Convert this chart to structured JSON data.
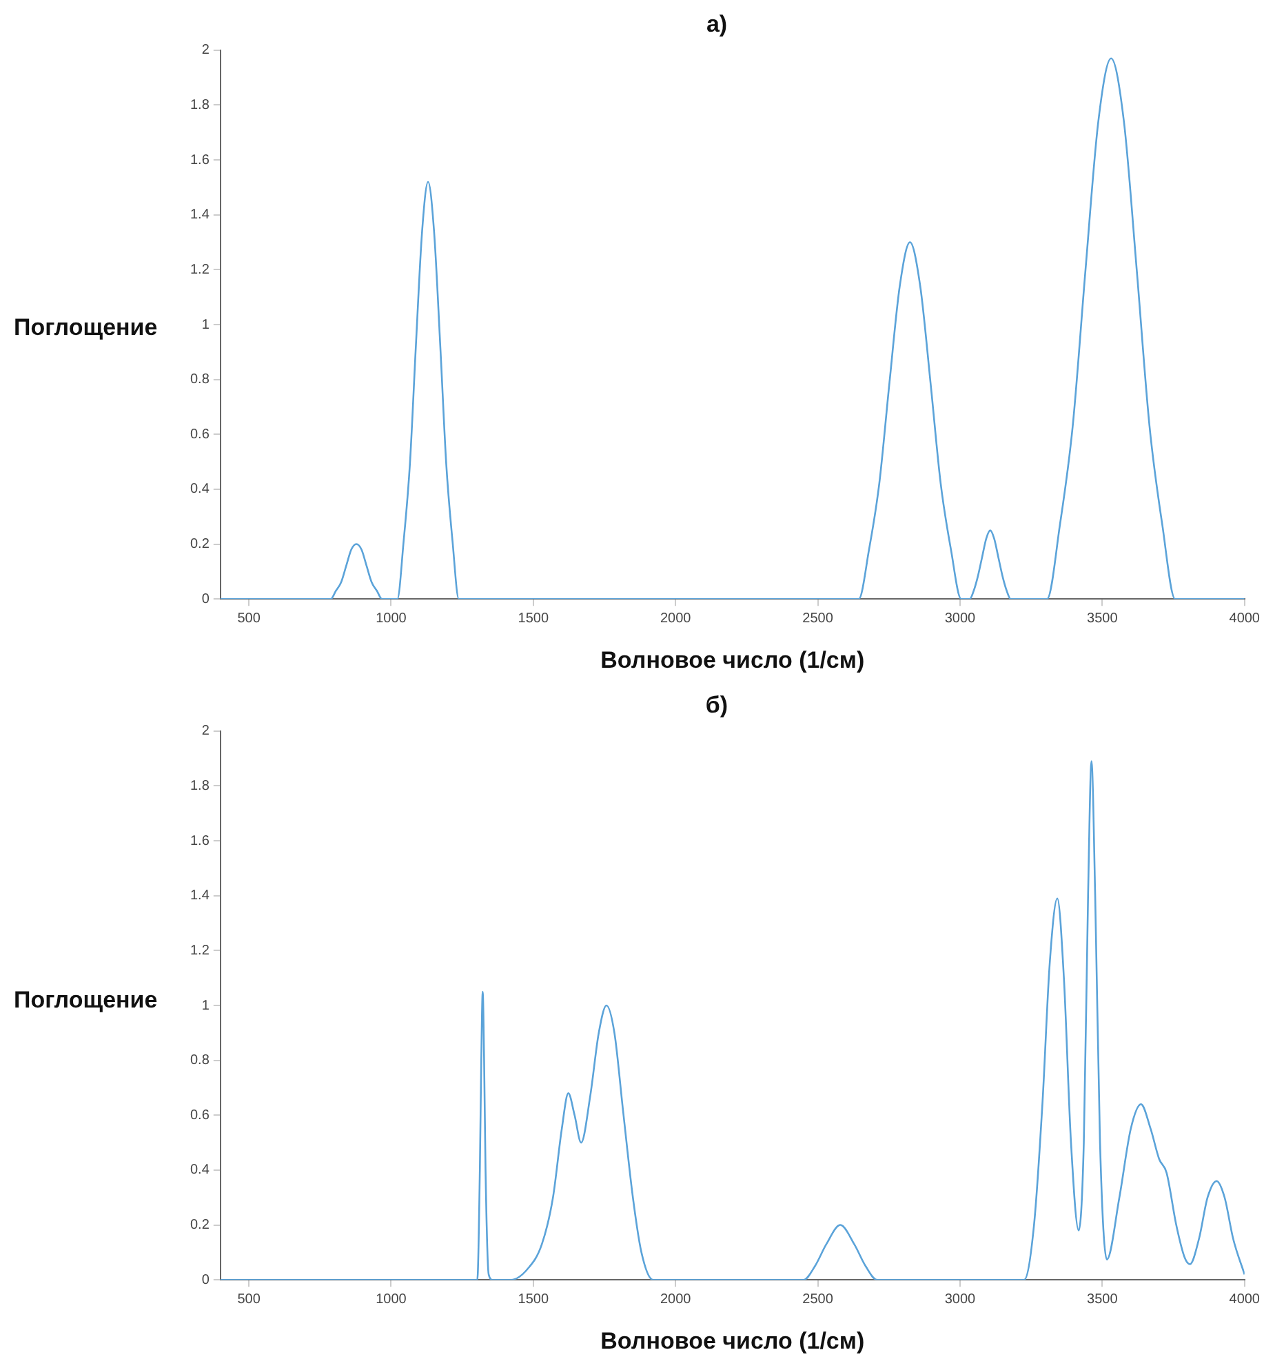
{
  "chart_data": [
    {
      "type": "line",
      "title": "а)",
      "xlabel": "Волновое число (1/см)",
      "ylabel": "Поглощение",
      "color": "#5ba3d9",
      "grid": false,
      "legend": false,
      "xlim": [
        400,
        4000
      ],
      "ylim": [
        0,
        2
      ],
      "xticks": [
        500,
        1000,
        1500,
        2000,
        2500,
        3000,
        3500,
        4000
      ],
      "yticks": [
        0,
        0.2,
        0.4,
        0.6,
        0.8,
        1,
        1.2,
        1.4,
        1.6,
        1.8,
        2
      ],
      "x": [
        400,
        788,
        806,
        824,
        842,
        860,
        878,
        896,
        914,
        932,
        950,
        968,
        1022,
        1044,
        1066,
        1087,
        1109,
        1130,
        1151,
        1173,
        1194,
        1216,
        1238,
        2644,
        2680,
        2716,
        2752,
        2788,
        2824,
        2860,
        2896,
        2932,
        2968,
        3004,
        3034,
        3048,
        3062,
        3077,
        3092,
        3106,
        3120,
        3135,
        3150,
        3164,
        3178,
        3306,
        3351,
        3396,
        3441,
        3486,
        3531,
        3576,
        3621,
        3666,
        3711,
        3756,
        4000
      ],
      "values": [
        0,
        0,
        0.03,
        0.06,
        0.12,
        0.18,
        0.2,
        0.18,
        0.12,
        0.06,
        0.03,
        0,
        0,
        0.21,
        0.49,
        0.92,
        1.34,
        1.52,
        1.34,
        0.92,
        0.49,
        0.21,
        0,
        0,
        0.18,
        0.42,
        0.79,
        1.14,
        1.3,
        1.14,
        0.79,
        0.42,
        0.18,
        0,
        0,
        0.03,
        0.08,
        0.15,
        0.22,
        0.25,
        0.22,
        0.15,
        0.08,
        0.03,
        0,
        0,
        0.27,
        0.63,
        1.2,
        1.74,
        1.97,
        1.74,
        1.2,
        0.63,
        0.27,
        0,
        0
      ]
    },
    {
      "type": "line",
      "title": "б)",
      "xlabel": "Волновое число (1/см)",
      "ylabel": "Поглощение",
      "color": "#5ba3d9",
      "grid": false,
      "legend": false,
      "xlim": [
        400,
        4000
      ],
      "ylim": [
        0,
        2
      ],
      "xticks": [
        500,
        1000,
        1500,
        2000,
        2500,
        3000,
        3500,
        4000
      ],
      "yticks": [
        0,
        0.2,
        0.4,
        0.6,
        0.8,
        1,
        1.2,
        1.4,
        1.6,
        1.8,
        2
      ],
      "x": [
        400,
        1303,
        1312,
        1317,
        1322,
        1327,
        1332,
        1343,
        1357,
        1421,
        1480,
        1530,
        1569,
        1600,
        1623,
        1645,
        1668,
        1700,
        1730,
        1757,
        1785,
        1815,
        1850,
        1880,
        1921,
        2450,
        2490,
        2530,
        2579,
        2628,
        2668,
        2708,
        3225,
        3260,
        3290,
        3315,
        3342,
        3365,
        3390,
        3417,
        3435,
        3450,
        3462,
        3475,
        3492,
        3516,
        3560,
        3600,
        3636,
        3670,
        3700,
        3726,
        3760,
        3790,
        3808,
        3840,
        3870,
        3902,
        3930,
        3960,
        4000
      ],
      "values": [
        0,
        0,
        0.4,
        0.8,
        1.05,
        0.8,
        0.4,
        0.02,
        0,
        0,
        0.04,
        0.13,
        0.3,
        0.55,
        0.68,
        0.6,
        0.5,
        0.67,
        0.9,
        1,
        0.9,
        0.62,
        0.3,
        0.1,
        0,
        0,
        0.05,
        0.13,
        0.2,
        0.13,
        0.05,
        0,
        0,
        0.2,
        0.65,
        1.15,
        1.39,
        1.1,
        0.5,
        0.18,
        0.5,
        1.4,
        1.89,
        1.4,
        0.5,
        0.074,
        0.3,
        0.55,
        0.64,
        0.55,
        0.44,
        0.39,
        0.2,
        0.08,
        0.057,
        0.15,
        0.3,
        0.36,
        0.3,
        0.15,
        0.02
      ]
    }
  ]
}
